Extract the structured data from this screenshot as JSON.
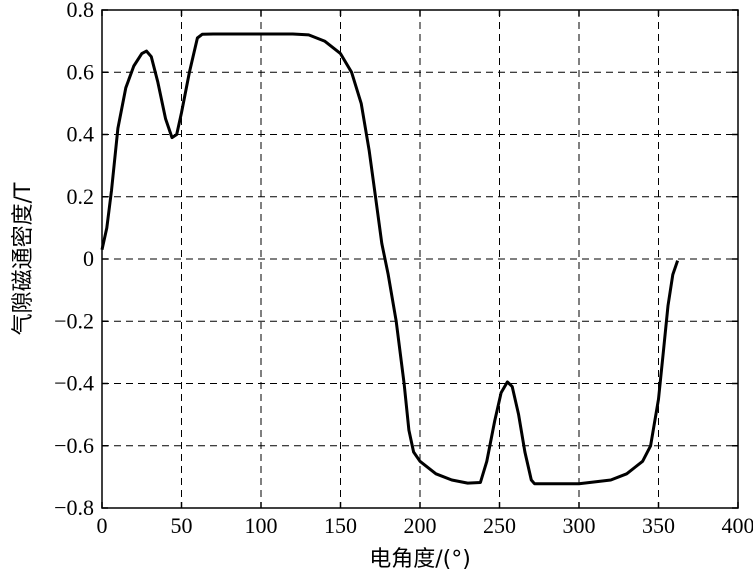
{
  "chart_data": {
    "type": "line",
    "title": "",
    "xlabel": "电角度/(°)",
    "ylabel": "气隙磁通密度/T",
    "xlim": [
      0,
      400
    ],
    "ylim": [
      -0.8,
      0.8
    ],
    "grid": true,
    "x_ticks": [
      "0",
      "50",
      "100",
      "150",
      "200",
      "250",
      "300",
      "350",
      "400"
    ],
    "y_ticks": [
      "-0.8",
      "-0.6",
      "-0.4",
      "-0.2",
      "0",
      "0.2",
      "0.4",
      "0.6",
      "0.8"
    ],
    "series": [
      {
        "points": [
          [
            0,
            0.03
          ],
          [
            3,
            0.1
          ],
          [
            6,
            0.22
          ],
          [
            10,
            0.42
          ],
          [
            15,
            0.55
          ],
          [
            20,
            0.62
          ],
          [
            25,
            0.66
          ],
          [
            28,
            0.668
          ],
          [
            31,
            0.65
          ],
          [
            35,
            0.57
          ],
          [
            40,
            0.45
          ],
          [
            44,
            0.39
          ],
          [
            47,
            0.4
          ],
          [
            50,
            0.47
          ],
          [
            55,
            0.6
          ],
          [
            60,
            0.71
          ],
          [
            63,
            0.722
          ],
          [
            70,
            0.723
          ],
          [
            100,
            0.723
          ],
          [
            120,
            0.723
          ],
          [
            130,
            0.72
          ],
          [
            140,
            0.7
          ],
          [
            150,
            0.66
          ],
          [
            157,
            0.6
          ],
          [
            163,
            0.5
          ],
          [
            168,
            0.35
          ],
          [
            172,
            0.2
          ],
          [
            176,
            0.05
          ],
          [
            180,
            -0.05
          ],
          [
            185,
            -0.2
          ],
          [
            190,
            -0.4
          ],
          [
            193,
            -0.55
          ],
          [
            196,
            -0.62
          ],
          [
            200,
            -0.65
          ],
          [
            210,
            -0.69
          ],
          [
            220,
            -0.71
          ],
          [
            230,
            -0.72
          ],
          [
            238,
            -0.718
          ],
          [
            242,
            -0.65
          ],
          [
            247,
            -0.52
          ],
          [
            251,
            -0.43
          ],
          [
            255,
            -0.395
          ],
          [
            258,
            -0.41
          ],
          [
            262,
            -0.5
          ],
          [
            266,
            -0.62
          ],
          [
            270,
            -0.71
          ],
          [
            272,
            -0.722
          ],
          [
            280,
            -0.722
          ],
          [
            300,
            -0.722
          ],
          [
            320,
            -0.71
          ],
          [
            330,
            -0.69
          ],
          [
            340,
            -0.65
          ],
          [
            345,
            -0.6
          ],
          [
            350,
            -0.45
          ],
          [
            353,
            -0.3
          ],
          [
            356,
            -0.15
          ],
          [
            359,
            -0.05
          ],
          [
            362,
            -0.005
          ]
        ]
      }
    ]
  }
}
